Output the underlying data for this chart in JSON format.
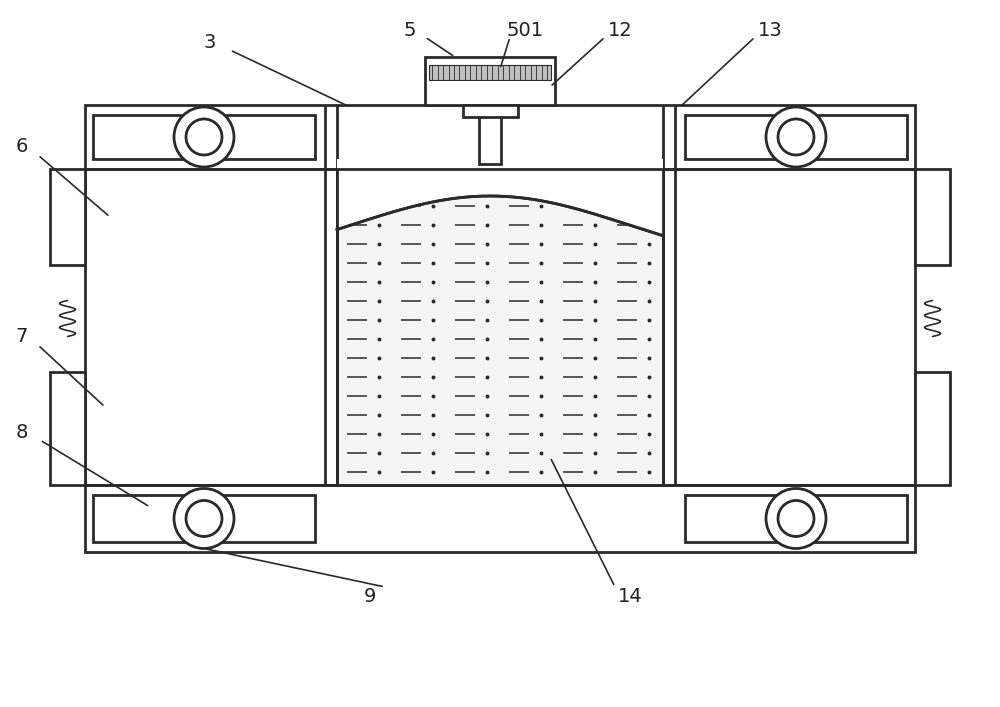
{
  "bg_color": "#ffffff",
  "line_color": "#2a2a2a",
  "lw_main": 2.0,
  "lw_thin": 1.2,
  "label_fs": 14,
  "label_color": "#222222"
}
